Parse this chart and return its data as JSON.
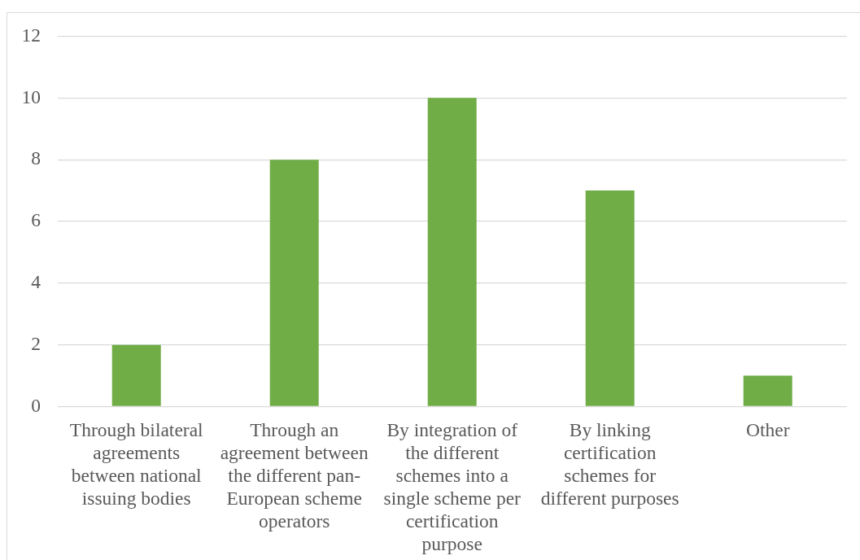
{
  "chart_data": {
    "type": "bar",
    "categories": [
      "Through bilateral agreements between national issuing bodies",
      "Through an agreement between the different pan-European scheme operators",
      "By integration of the different schemes into a single scheme per certification purpose",
      "By linking certification schemes for different purposes",
      "Other"
    ],
    "values": [
      2,
      8,
      10,
      7,
      1
    ],
    "color": "#70ad47",
    "ylim": [
      0,
      12
    ],
    "yticks": [
      0,
      2,
      4,
      6,
      8,
      10,
      12
    ],
    "grid": "y"
  }
}
